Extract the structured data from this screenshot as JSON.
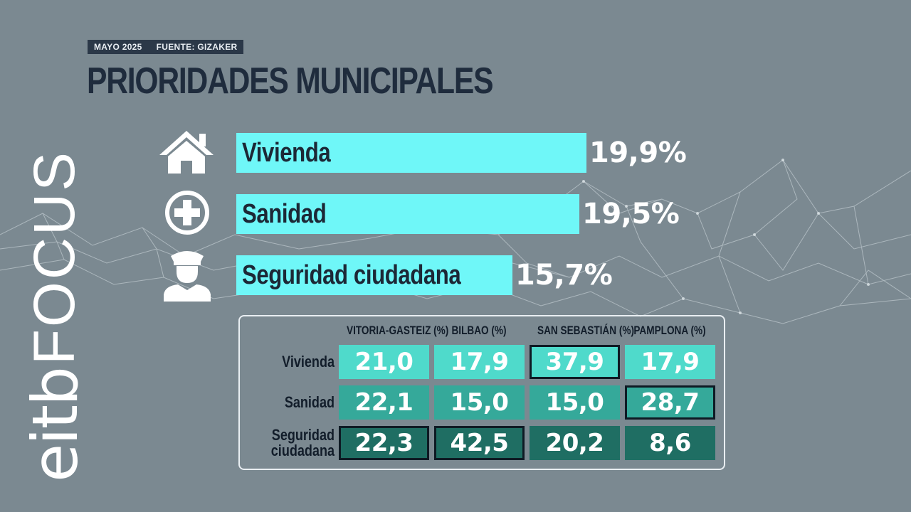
{
  "header": {
    "date": "MAYO 2025",
    "source": "FUENTE: GIZAKER",
    "title": "PRIORIDADES MUNICIPALES"
  },
  "logo": {
    "text": "eitbFOCUS"
  },
  "icons": [
    "house-icon",
    "medical-cross-icon",
    "police-officer-icon"
  ],
  "colors": {
    "background": "#7b8991",
    "bar": "#6ff7f8",
    "title": "#1f2c3d",
    "row_colors": [
      "#4fdacb",
      "#35a99a",
      "#1f6e63"
    ]
  },
  "chart_data": [
    {
      "type": "bar",
      "orientation": "horizontal",
      "title": "PRIORIDADES MUNICIPALES",
      "categories": [
        "Vivienda",
        "Sanidad",
        "Seguridad ciudadana"
      ],
      "values": [
        19.9,
        19.5,
        15.7
      ],
      "value_labels": [
        "19,9%",
        "19,5%",
        "15,7%"
      ],
      "unit": "%"
    },
    {
      "type": "table",
      "columns": [
        "VITORIA-GASTEIZ (%)",
        "BILBAO (%)",
        "SAN SEBASTIÁN (%)",
        "PAMPLONA (%)"
      ],
      "rows": [
        {
          "label_lines": [
            "Vivienda"
          ],
          "values": [
            "21,0",
            "17,9",
            "37,9",
            "17,9"
          ],
          "highlight": [
            false,
            false,
            true,
            false
          ]
        },
        {
          "label_lines": [
            "Sanidad"
          ],
          "values": [
            "22,1",
            "15,0",
            "15,0",
            "28,7"
          ],
          "highlight": [
            false,
            false,
            false,
            true
          ]
        },
        {
          "label_lines": [
            "Seguridad",
            "ciudadana"
          ],
          "values": [
            "22,3",
            "42,5",
            "20,2",
            "8,6"
          ],
          "highlight": [
            true,
            true,
            false,
            false
          ]
        }
      ]
    }
  ]
}
